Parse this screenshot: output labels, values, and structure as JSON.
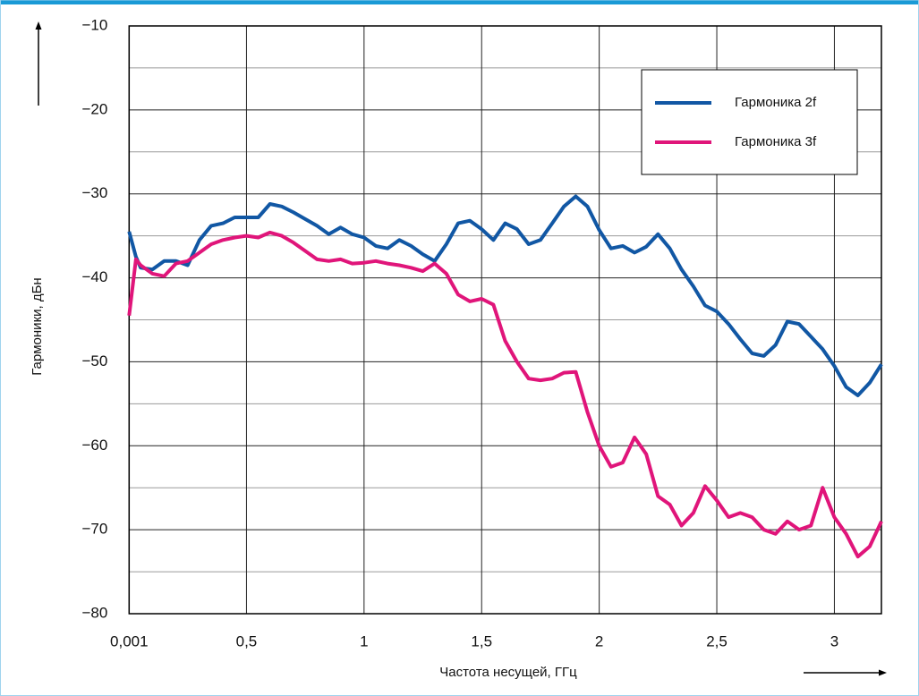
{
  "chart_data": {
    "type": "line",
    "ylabel": "Гармоники, дБн",
    "xlabel": "Частота несущей, ГГц",
    "x": [
      0.001,
      0.03,
      0.05,
      0.1,
      0.15,
      0.2,
      0.25,
      0.3,
      0.35,
      0.4,
      0.45,
      0.5,
      0.55,
      0.6,
      0.65,
      0.7,
      0.75,
      0.8,
      0.85,
      0.9,
      0.95,
      1.0,
      1.05,
      1.1,
      1.15,
      1.2,
      1.25,
      1.3,
      1.35,
      1.4,
      1.45,
      1.5,
      1.55,
      1.6,
      1.65,
      1.7,
      1.75,
      1.8,
      1.85,
      1.9,
      1.95,
      2.0,
      2.05,
      2.1,
      2.15,
      2.2,
      2.25,
      2.3,
      2.35,
      2.4,
      2.45,
      2.5,
      2.55,
      2.6,
      2.65,
      2.7,
      2.75,
      2.8,
      2.85,
      2.9,
      2.95,
      3.0,
      3.05,
      3.1,
      3.15,
      3.2
    ],
    "series": [
      {
        "name": "Гармоника 2f",
        "color": "#1157a4",
        "values": [
          -34.5,
          -37.5,
          -38.8,
          -39,
          -38,
          -38,
          -38.5,
          -35.5,
          -33.8,
          -33.5,
          -32.8,
          -32.8,
          -32.8,
          -31.2,
          -31.5,
          -32.2,
          -33,
          -33.8,
          -34.8,
          -34,
          -34.8,
          -35.2,
          -36.2,
          -36.5,
          -35.5,
          -36.2,
          -37.2,
          -38,
          -36,
          -33.5,
          -33.2,
          -34.2,
          -35.5,
          -33.5,
          -34.2,
          -36,
          -35.5,
          -33.5,
          -31.5,
          -30.3,
          -31.5,
          -34.3,
          -36.5,
          -36.2,
          -37,
          -36.3,
          -34.8,
          -36.5,
          -39,
          -41,
          -43.3,
          -44,
          -45.5,
          -47.3,
          -49,
          -49.3,
          -48,
          -45.2,
          -45.5,
          -47,
          -48.5,
          -50.5,
          -53,
          -54,
          -52.5,
          -50.3
        ]
      },
      {
        "name": "Гармоника 3f",
        "color": "#e0157a",
        "values": [
          -44.5,
          -37.8,
          -38.5,
          -39.5,
          -39.8,
          -38.3,
          -38,
          -37,
          -36,
          -35.5,
          -35.2,
          -35,
          -35.2,
          -34.6,
          -35,
          -35.8,
          -36.8,
          -37.8,
          -38,
          -37.8,
          -38.3,
          -38.2,
          -38,
          -38.3,
          -38.5,
          -38.8,
          -39.2,
          -38.3,
          -39.5,
          -42,
          -42.8,
          -42.5,
          -43.2,
          -47.5,
          -50,
          -52,
          -52.2,
          -52,
          -51.3,
          -51.2,
          -56,
          -60,
          -62.5,
          -62,
          -59,
          -61,
          -66,
          -67,
          -69.5,
          -68,
          -64.8,
          -66.5,
          -68.5,
          -68,
          -68.5,
          -70,
          -70.5,
          -69,
          -70,
          -69.5,
          -65,
          -68.5,
          -70.5,
          -73.2,
          -72,
          -69
        ]
      }
    ],
    "xlim": [
      0.001,
      3.2
    ],
    "xticks": [
      {
        "value": 0.001,
        "label": "0,001"
      },
      {
        "value": 0.5,
        "label": "0,5"
      },
      1,
      {
        "value": 1.5,
        "label": "1,5"
      },
      2,
      {
        "value": 2.5,
        "label": "2,5"
      },
      3
    ],
    "ylim": [
      -80,
      -10
    ],
    "yticks": [
      {
        "value": -80,
        "label": "−80"
      },
      {
        "value": -70,
        "label": "−70"
      },
      {
        "value": -60,
        "label": "−60"
      },
      {
        "value": -50,
        "label": "−50"
      },
      {
        "value": -40,
        "label": "−40"
      },
      {
        "value": -30,
        "label": "−30"
      },
      {
        "value": -20,
        "label": "−20"
      },
      {
        "value": -10,
        "label": "−10"
      }
    ],
    "minor_yticks": [
      -75,
      -65,
      -55,
      -45,
      -35,
      -25,
      -15
    ],
    "grid": true,
    "legend": "upper right"
  }
}
